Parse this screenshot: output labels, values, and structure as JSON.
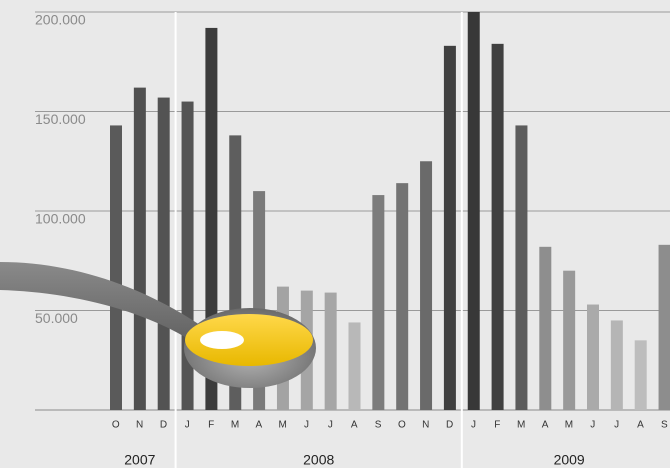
{
  "chart_data": {
    "type": "bar",
    "groups": [
      {
        "name": "2007",
        "categories": [
          "O",
          "N",
          "D"
        ]
      },
      {
        "name": "2008",
        "categories": [
          "J",
          "F",
          "M",
          "A",
          "M",
          "J",
          "J",
          "A",
          "S",
          "O",
          "N",
          "D"
        ]
      },
      {
        "name": "2009",
        "categories": [
          "J",
          "F",
          "M",
          "A",
          "M",
          "J",
          "J",
          "A",
          "S"
        ]
      }
    ],
    "values": [
      143000,
      162000,
      157000,
      155000,
      192000,
      138000,
      110000,
      62000,
      60000,
      59000,
      44000,
      108000,
      114000,
      125000,
      183000,
      200000,
      184000,
      143000,
      82000,
      70000,
      53000,
      45000,
      35000,
      83000
    ],
    "colors": [
      "#5a5a5a",
      "#505050",
      "#535353",
      "#545454",
      "#3c3c3c",
      "#5e5e5e",
      "#7a7a7a",
      "#a3a3a3",
      "#a5a5a5",
      "#a6a6a6",
      "#b8b8b8",
      "#7c7c7c",
      "#737373",
      "#6a6a6a",
      "#404040",
      "#383838",
      "#404040",
      "#5c5c5c",
      "#8e8e8e",
      "#999999",
      "#aaaaaa",
      "#b5b5b5",
      "#bdbdbd",
      "#8d8d8d"
    ],
    "ylim": [
      0,
      200000
    ],
    "yticks": [
      {
        "value": 50000,
        "label": "50.000"
      },
      {
        "value": 100000,
        "label": "100.000"
      },
      {
        "value": 150000,
        "label": "150.000"
      },
      {
        "value": 200000,
        "label": "200.000"
      }
    ],
    "grid": true
  }
}
